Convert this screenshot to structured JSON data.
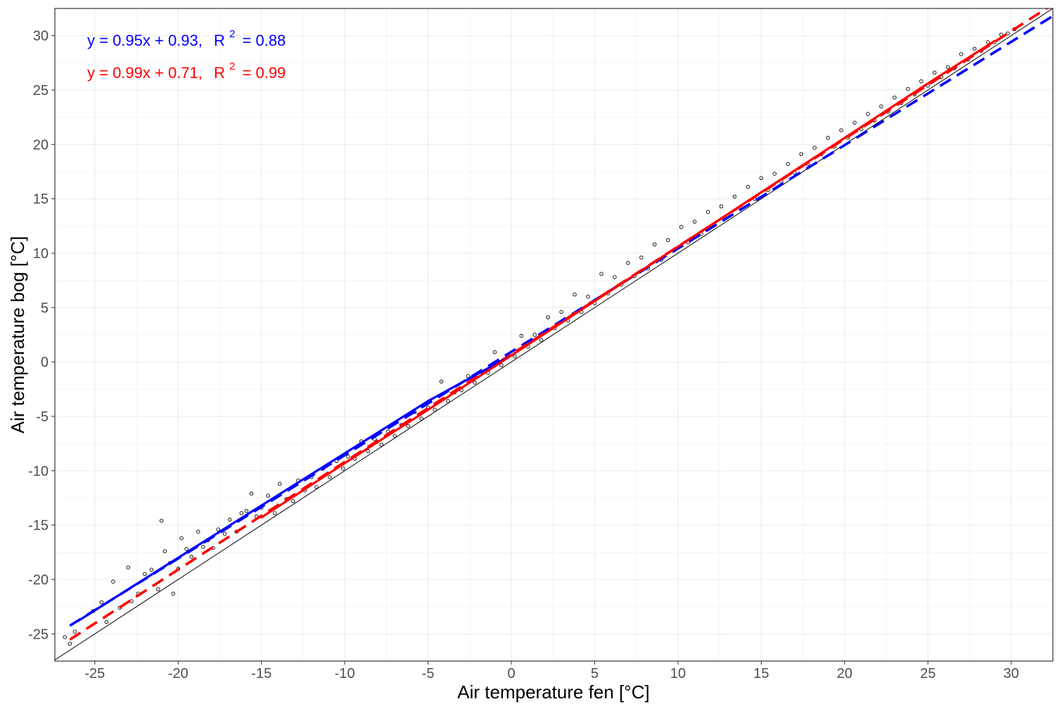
{
  "chart_data": {
    "type": "scatter",
    "title": "",
    "xlabel": "Air temperature fen [°C]",
    "ylabel": "Air temperature bog [°C]",
    "xlim": [
      -27.4,
      32.5
    ],
    "ylim": [
      -27.5,
      32.5
    ],
    "x_ticks": [
      -25,
      -20,
      -15,
      -10,
      -5,
      0,
      5,
      10,
      15,
      20,
      25,
      30
    ],
    "y_ticks": [
      -25,
      -20,
      -15,
      -10,
      -5,
      0,
      5,
      10,
      15,
      20,
      25,
      30
    ],
    "x_tick_labels": [
      "-25",
      "-20",
      "-15",
      "-10",
      "-5",
      "0",
      "5",
      "10",
      "15",
      "20",
      "25",
      "30"
    ],
    "y_tick_labels": [
      "-25",
      "-20",
      "-15",
      "-10",
      "-5",
      "0",
      "5",
      "10",
      "15",
      "20",
      "25",
      "30"
    ],
    "grid": true,
    "annotations": [
      {
        "text": "y = 0.95x + 0.93,",
        "r_label": "R",
        "r_sup": "2",
        "r_value": "= 0.88",
        "color": "#0000ff"
      },
      {
        "text": "y = 0.99x + 0.71,",
        "r_label": "R",
        "r_sup": "2",
        "r_value": "= 0.99",
        "color": "#ff0000"
      }
    ],
    "lines": [
      {
        "kind": "identity",
        "slope": 1.0,
        "intercept": 0.0,
        "color": "#000000",
        "style": "solid"
      },
      {
        "kind": "fit",
        "slope": 0.95,
        "intercept": 0.93,
        "color": "#0000ff",
        "style": "dashed",
        "x_range": [
          -26.5,
          32.5
        ]
      },
      {
        "kind": "fit",
        "slope": 0.99,
        "intercept": 0.71,
        "color": "#ff0000",
        "style": "dashed",
        "x_range": [
          -26.5,
          32.5
        ]
      }
    ],
    "trend_segments": [
      {
        "color": "#0000ff",
        "points": [
          [
            -26.0,
            -23.8
          ],
          [
            -20.0,
            -18.0
          ],
          [
            -15.0,
            -13.2
          ],
          [
            -10.0,
            -8.4
          ],
          [
            -5.0,
            -3.6
          ],
          [
            0.0,
            0.6
          ]
        ]
      },
      {
        "color": "#ff0000",
        "points": [
          [
            -15.0,
            -14.3
          ],
          [
            -10.0,
            -9.3
          ],
          [
            -5.0,
            -4.4
          ],
          [
            0.0,
            0.6
          ],
          [
            5.0,
            5.6
          ],
          [
            10.0,
            10.6
          ],
          [
            15.0,
            15.6
          ],
          [
            20.0,
            20.6
          ],
          [
            25.0,
            25.6
          ],
          [
            29.0,
            29.5
          ]
        ]
      }
    ],
    "series": [
      {
        "marker": "open-circle",
        "color": "#000000",
        "sample_points": [
          [
            -26.8,
            -25.3
          ],
          [
            -26.5,
            -25.9
          ],
          [
            -26.2,
            -24.8
          ],
          [
            -25.1,
            -22.9
          ],
          [
            -24.6,
            -22.1
          ],
          [
            -24.3,
            -23.9
          ],
          [
            -23.9,
            -20.2
          ],
          [
            -23.5,
            -22.6
          ],
          [
            -23.0,
            -18.9
          ],
          [
            -22.8,
            -22.0
          ],
          [
            -22.4,
            -21.3
          ],
          [
            -22.0,
            -19.5
          ],
          [
            -21.6,
            -19.1
          ],
          [
            -21.2,
            -20.9
          ],
          [
            -21.0,
            -14.6
          ],
          [
            -20.8,
            -17.4
          ],
          [
            -20.5,
            -18.5
          ],
          [
            -20.3,
            -21.3
          ],
          [
            -20.0,
            -19.0
          ],
          [
            -19.8,
            -16.2
          ],
          [
            -19.5,
            -17.2
          ],
          [
            -19.2,
            -17.9
          ],
          [
            -18.8,
            -15.6
          ],
          [
            -18.5,
            -17.0
          ],
          [
            -18.2,
            -16.4
          ],
          [
            -17.9,
            -17.1
          ],
          [
            -17.6,
            -15.4
          ],
          [
            -17.2,
            -15.8
          ],
          [
            -16.9,
            -14.5
          ],
          [
            -16.5,
            -15.6
          ],
          [
            -16.2,
            -13.9
          ],
          [
            -15.9,
            -13.7
          ],
          [
            -15.6,
            -12.1
          ],
          [
            -15.3,
            -14.2
          ],
          [
            -15.0,
            -13.4
          ],
          [
            -14.6,
            -12.3
          ],
          [
            -14.2,
            -13.9
          ],
          [
            -13.9,
            -11.2
          ],
          [
            -13.5,
            -12.6
          ],
          [
            -13.1,
            -12.8
          ],
          [
            -12.8,
            -10.9
          ],
          [
            -12.4,
            -11.8
          ],
          [
            -12.0,
            -10.6
          ],
          [
            -11.7,
            -11.5
          ],
          [
            -11.3,
            -9.8
          ],
          [
            -10.9,
            -10.6
          ],
          [
            -10.5,
            -9.1
          ],
          [
            -10.1,
            -9.8
          ],
          [
            -9.8,
            -8.7
          ],
          [
            -9.4,
            -8.9
          ],
          [
            -9.0,
            -7.3
          ],
          [
            -8.6,
            -8.2
          ],
          [
            -8.2,
            -7.1
          ],
          [
            -7.8,
            -7.6
          ],
          [
            -7.4,
            -6.4
          ],
          [
            -7.0,
            -6.8
          ],
          [
            -6.6,
            -5.8
          ],
          [
            -6.2,
            -5.9
          ],
          [
            -5.8,
            -4.6
          ],
          [
            -5.4,
            -5.2
          ],
          [
            -5.0,
            -4.2
          ],
          [
            -4.6,
            -4.4
          ],
          [
            -4.2,
            -1.8
          ],
          [
            -3.8,
            -3.6
          ],
          [
            -3.4,
            -2.8
          ],
          [
            -3.0,
            -2.6
          ],
          [
            -2.6,
            -1.3
          ],
          [
            -2.2,
            -1.9
          ],
          [
            -1.8,
            -0.9
          ],
          [
            -1.4,
            -1.0
          ],
          [
            -1.0,
            0.9
          ],
          [
            -0.6,
            -0.3
          ],
          [
            -0.2,
            0.6
          ],
          [
            0.2,
            0.5
          ],
          [
            0.6,
            2.4
          ],
          [
            1.0,
            1.4
          ],
          [
            1.4,
            2.5
          ],
          [
            1.8,
            2.0
          ],
          [
            2.2,
            4.1
          ],
          [
            2.6,
            3.1
          ],
          [
            3.0,
            4.6
          ],
          [
            3.4,
            3.8
          ],
          [
            3.8,
            6.2
          ],
          [
            4.2,
            4.6
          ],
          [
            4.6,
            6.0
          ],
          [
            5.0,
            5.4
          ],
          [
            5.4,
            8.1
          ],
          [
            5.8,
            6.3
          ],
          [
            6.2,
            7.8
          ],
          [
            6.6,
            7.1
          ],
          [
            7.0,
            9.1
          ],
          [
            7.4,
            7.9
          ],
          [
            7.8,
            9.6
          ],
          [
            8.2,
            8.6
          ],
          [
            8.6,
            10.8
          ],
          [
            9.0,
            9.4
          ],
          [
            9.4,
            11.2
          ],
          [
            9.8,
            10.3
          ],
          [
            10.2,
            12.4
          ],
          [
            10.6,
            11.0
          ],
          [
            11.0,
            12.9
          ],
          [
            11.4,
            11.8
          ],
          [
            11.8,
            13.8
          ],
          [
            12.2,
            12.6
          ],
          [
            12.6,
            14.3
          ],
          [
            13.0,
            13.4
          ],
          [
            13.4,
            15.2
          ],
          [
            13.8,
            14.2
          ],
          [
            14.2,
            16.1
          ],
          [
            14.6,
            15.0
          ],
          [
            15.0,
            16.9
          ],
          [
            15.4,
            15.8
          ],
          [
            15.8,
            17.3
          ],
          [
            16.2,
            16.6
          ],
          [
            16.6,
            18.2
          ],
          [
            17.0,
            17.4
          ],
          [
            17.4,
            19.1
          ],
          [
            17.8,
            18.2
          ],
          [
            18.2,
            19.7
          ],
          [
            18.6,
            19.1
          ],
          [
            19.0,
            20.6
          ],
          [
            19.4,
            19.8
          ],
          [
            19.8,
            21.3
          ],
          [
            20.2,
            20.6
          ],
          [
            20.6,
            22.0
          ],
          [
            21.0,
            21.4
          ],
          [
            21.4,
            22.8
          ],
          [
            21.8,
            22.2
          ],
          [
            22.2,
            23.5
          ],
          [
            22.6,
            23.0
          ],
          [
            23.0,
            24.3
          ],
          [
            23.4,
            23.8
          ],
          [
            23.8,
            25.1
          ],
          [
            24.2,
            24.6
          ],
          [
            24.6,
            25.8
          ],
          [
            25.0,
            25.4
          ],
          [
            25.4,
            26.6
          ],
          [
            25.8,
            26.2
          ],
          [
            26.2,
            27.1
          ],
          [
            26.6,
            27.0
          ],
          [
            27.0,
            28.3
          ],
          [
            27.4,
            27.8
          ],
          [
            27.8,
            28.8
          ],
          [
            28.2,
            28.6
          ],
          [
            28.6,
            29.4
          ],
          [
            29.0,
            29.4
          ],
          [
            29.4,
            30.1
          ],
          [
            29.8,
            30.2
          ],
          [
            30.2,
            30.6
          ]
        ]
      }
    ]
  }
}
